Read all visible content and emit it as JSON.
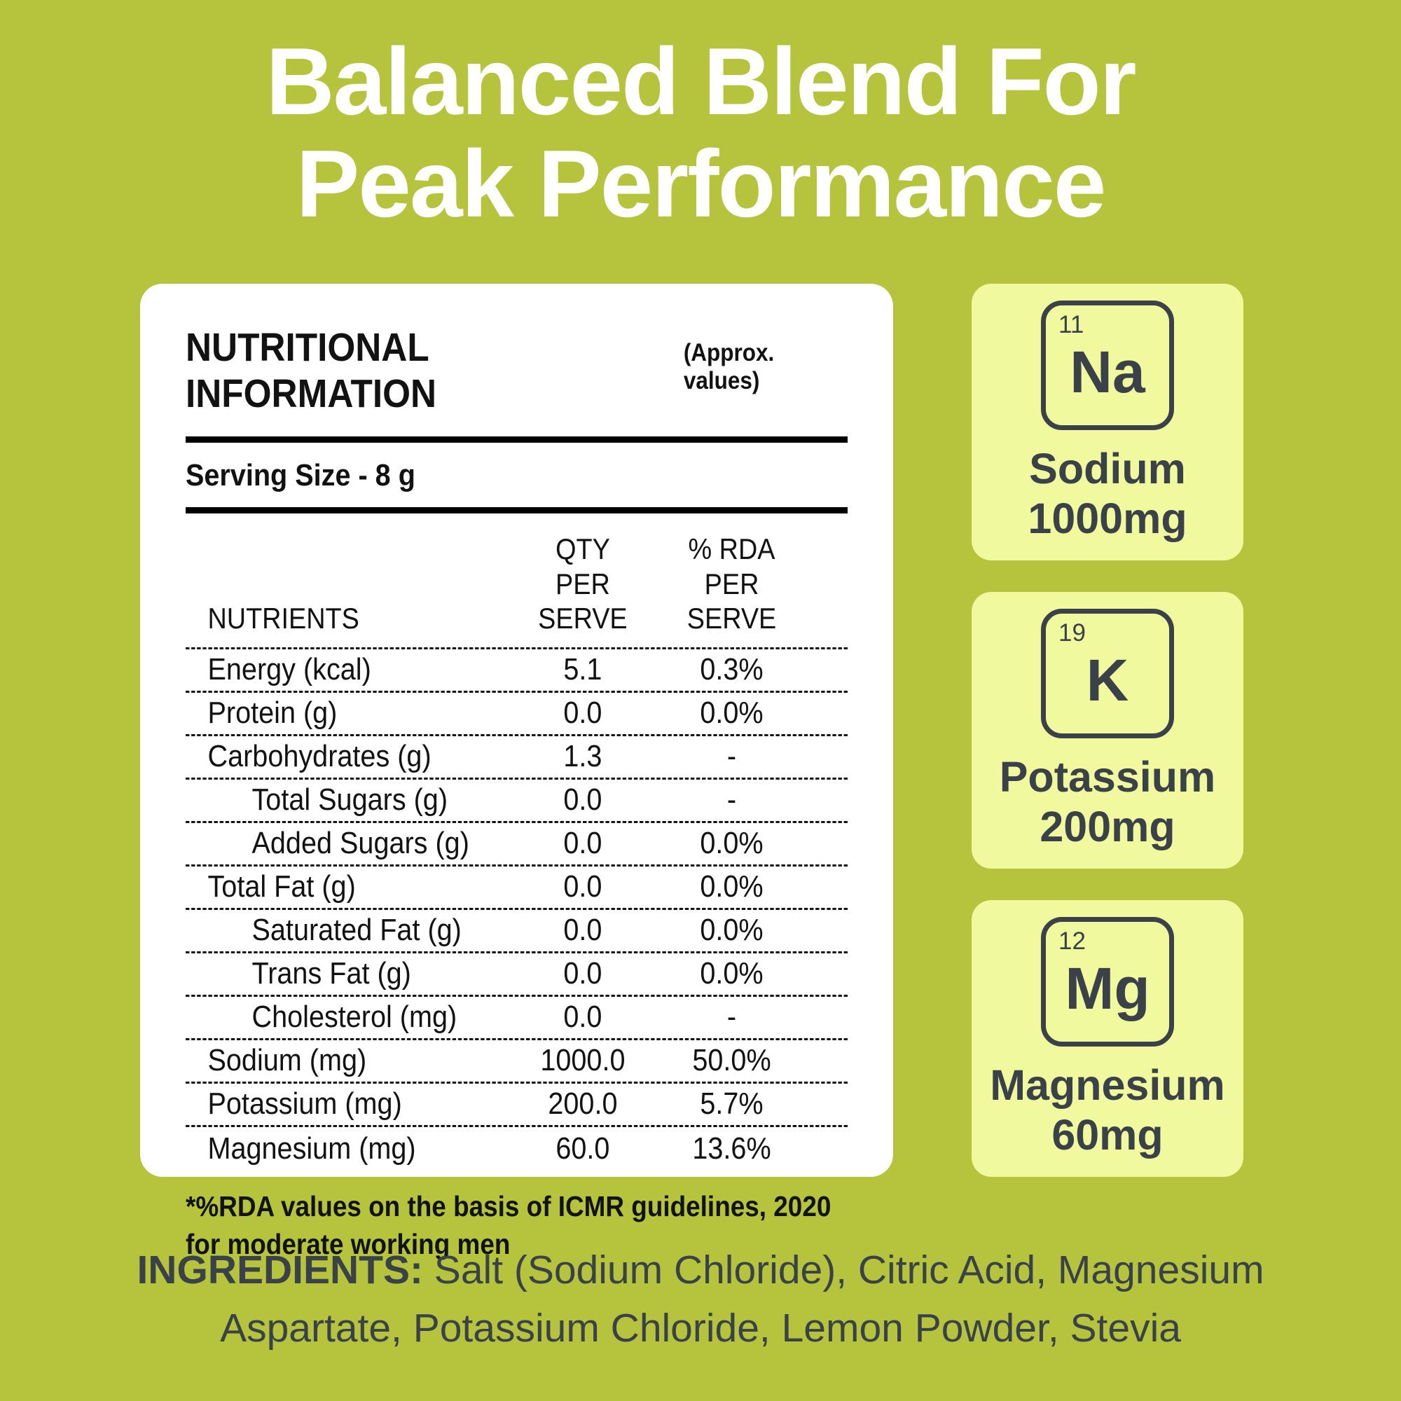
{
  "title": {
    "line1": "Balanced Blend For",
    "line2": "Peak Performance"
  },
  "colors": {
    "background": "#b5c33d",
    "card": "#ffffff",
    "tile_card": "#f1f99f",
    "dark_text": "#3a4148",
    "table_text": "#121212",
    "title_text": "#ffffff"
  },
  "nutrition_table": {
    "title": "NUTRITIONAL INFORMATION",
    "subtitle": "(Approx. values)",
    "serving_size": "Serving Size - 8 g",
    "columns": [
      "NUTRIENTS",
      "QTY PER SERVE",
      "% RDA PER SERVE"
    ],
    "rows": [
      {
        "name": "Energy (kcal)",
        "qty": "5.1",
        "rda": "0.3%",
        "indent": false
      },
      {
        "name": "Protein (g)",
        "qty": "0.0",
        "rda": "0.0%",
        "indent": false
      },
      {
        "name": "Carbohydrates (g)",
        "qty": "1.3",
        "rda": "-",
        "indent": false
      },
      {
        "name": "Total Sugars (g)",
        "qty": "0.0",
        "rda": "-",
        "indent": true
      },
      {
        "name": "Added Sugars (g)",
        "qty": "0.0",
        "rda": "0.0%",
        "indent": true
      },
      {
        "name": "Total Fat (g)",
        "qty": "0.0",
        "rda": "0.0%",
        "indent": false
      },
      {
        "name": "Saturated Fat (g)",
        "qty": "0.0",
        "rda": "0.0%",
        "indent": true
      },
      {
        "name": "Trans Fat (g)",
        "qty": "0.0",
        "rda": "0.0%",
        "indent": true
      },
      {
        "name": "Cholesterol (mg)",
        "qty": "0.0",
        "rda": "-",
        "indent": true
      },
      {
        "name": "Sodium (mg)",
        "qty": "1000.0",
        "rda": "50.0%",
        "indent": false
      },
      {
        "name": "Potassium (mg)",
        "qty": "200.0",
        "rda": "5.7%",
        "indent": false
      },
      {
        "name": "Magnesium (mg)",
        "qty": "60.0",
        "rda": "13.6%",
        "indent": false
      }
    ],
    "footnote": "*%RDA values on the basis of ICMR guidelines, 2020 for moderate working men"
  },
  "element_cards": [
    {
      "number": "11",
      "symbol": "Na",
      "name": "Sodium",
      "amount": "1000mg"
    },
    {
      "number": "19",
      "symbol": "K",
      "name": "Potassium",
      "amount": "200mg"
    },
    {
      "number": "12",
      "symbol": "Mg",
      "name": "Magnesium",
      "amount": "60mg"
    }
  ],
  "ingredients": {
    "label": "INGREDIENTS:",
    "line1_rest": " Salt (Sodium Chloride), Citric Acid, Magnesium",
    "line2": "Aspartate, Potassium Chloride, Lemon Powder, Stevia"
  }
}
